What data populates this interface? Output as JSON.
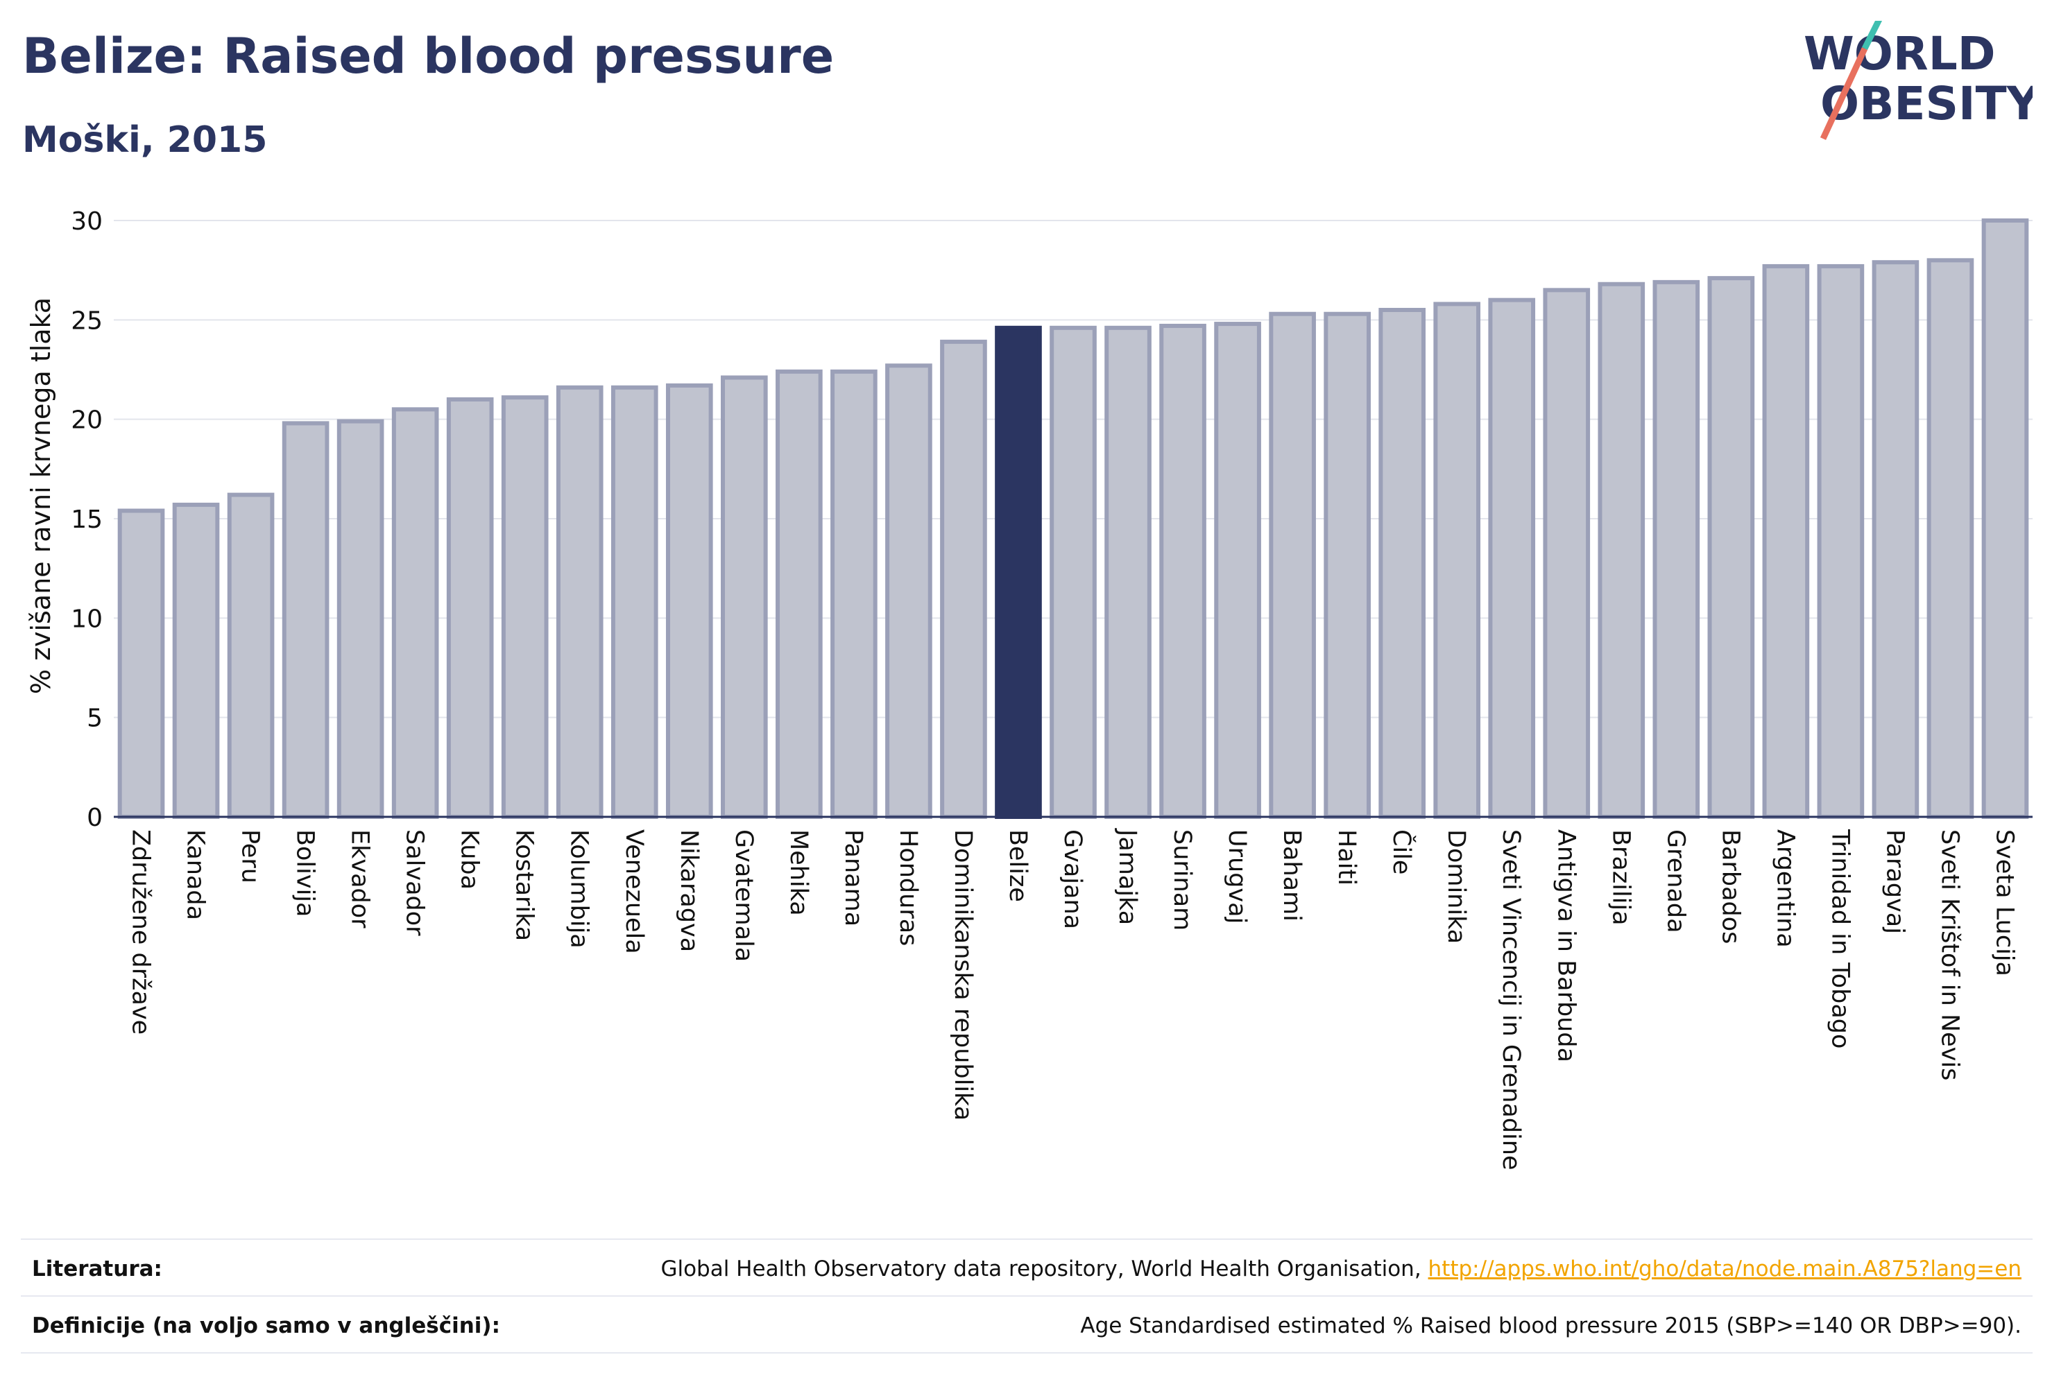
{
  "header": {
    "title": "Belize: Raised blood pressure",
    "subtitle": "Moški, 2015",
    "logo_line1": "WORLD",
    "logo_line2": "OBESITY"
  },
  "chart_data": {
    "type": "bar",
    "ylabel": "% zvišane ravni krvnega tlaka",
    "ylim": [
      0,
      30
    ],
    "yticks": [
      0,
      5,
      10,
      15,
      20,
      25,
      30
    ],
    "grid": true,
    "highlight": "Belize",
    "colors": {
      "bar": "#c0c3cf",
      "bar_border": "#9ba0b8",
      "highlight": "#2b3561",
      "grid": "#e3e5ec",
      "axis": "#2b3561"
    },
    "categories": [
      "Združene države",
      "Kanada",
      "Peru",
      "Bolivija",
      "Ekvador",
      "Salvador",
      "Kuba",
      "Kostarika",
      "Kolumbija",
      "Venezuela",
      "Nikaragva",
      "Gvatemala",
      "Mehika",
      "Panama",
      "Honduras",
      "Dominikanska republika",
      "Belize",
      "Gvajana",
      "Jamajka",
      "Surinam",
      "Urugvaj",
      "Bahami",
      "Haiti",
      "Čile",
      "Dominika",
      "Sveti Vincencij in Grenadine",
      "Antigva in Barbuda",
      "Brazilija",
      "Grenada",
      "Barbados",
      "Argentina",
      "Trinidad in Tobago",
      "Paragvaj",
      "Sveti Krištof in Nevis",
      "Sveta Lucija"
    ],
    "values": [
      15.4,
      15.7,
      16.2,
      19.8,
      19.9,
      20.5,
      21.0,
      21.1,
      21.6,
      21.6,
      21.7,
      22.1,
      22.4,
      22.4,
      22.7,
      23.9,
      24.6,
      24.6,
      24.6,
      24.7,
      24.8,
      25.3,
      25.3,
      25.5,
      25.8,
      26.0,
      26.5,
      26.8,
      26.9,
      27.1,
      27.7,
      27.7,
      27.9,
      28.0,
      30.0
    ]
  },
  "footer": {
    "references_label": "Literatura:",
    "references_text": "Global Health Observatory data repository, World Health Organisation, ",
    "references_link": "http://apps.who.int/gho/data/node.main.A875?lang=en",
    "definitions_label": "Definicije (na voljo samo v angleščini):",
    "definitions_text": "Age Standardised estimated % Raised blood pressure 2015 (SBP>=140 OR DBP>=90)."
  }
}
